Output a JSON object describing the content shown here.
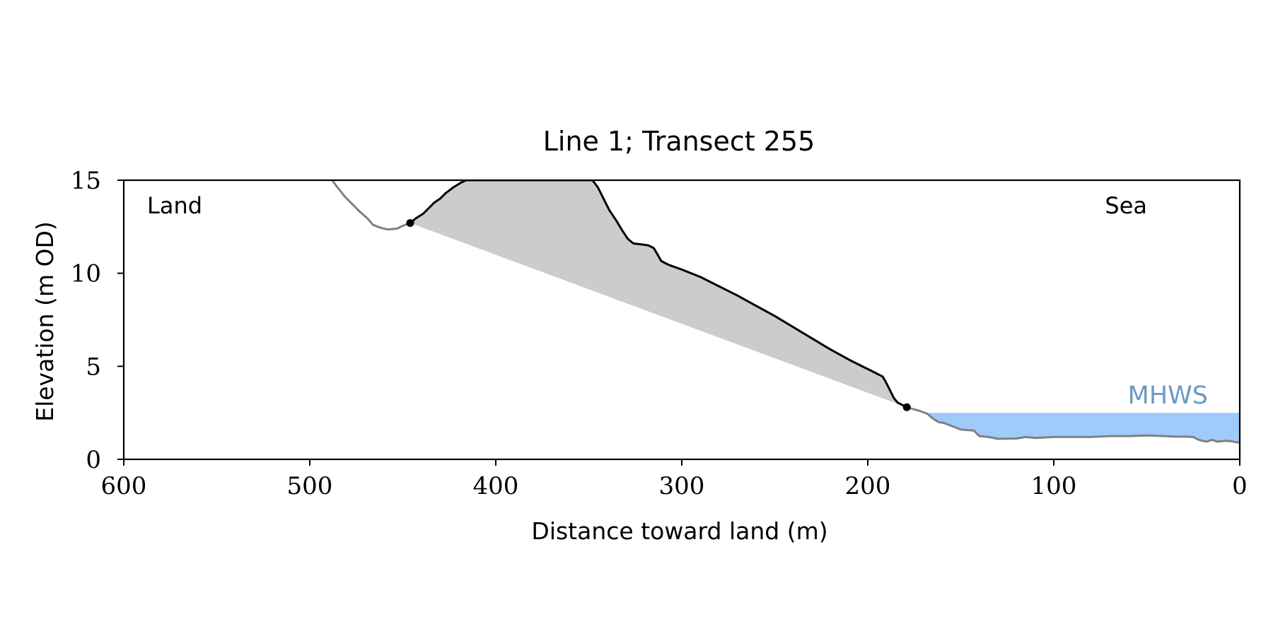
{
  "chart_data": {
    "type": "line",
    "title": "Line 1; Transect 255",
    "xlabel": "Distance toward land (m)",
    "ylabel": "Elevation (m OD)",
    "xlim": [
      600,
      0
    ],
    "ylim": [
      0,
      15
    ],
    "x_inverted": true,
    "grid": false,
    "xticks": [
      600,
      500,
      400,
      300,
      200,
      100,
      0
    ],
    "yticks": [
      0,
      5,
      10,
      15
    ],
    "annotations": {
      "land": "Land",
      "sea": "Sea",
      "mhws": "MHWS"
    },
    "mhws_level": 2.5,
    "series": [
      {
        "role": "profile-outer",
        "color": "#808080",
        "points": [
          [
            488,
            15.0
          ],
          [
            485,
            14.6
          ],
          [
            481,
            14.1
          ],
          [
            477,
            13.7
          ],
          [
            473,
            13.3
          ],
          [
            469,
            12.95
          ],
          [
            466,
            12.6
          ],
          [
            462,
            12.45
          ],
          [
            458,
            12.35
          ],
          [
            453,
            12.4
          ],
          [
            450,
            12.55
          ],
          [
            446,
            12.7
          ]
        ]
      },
      {
        "role": "profile-cliff",
        "color": "#000000",
        "points": [
          [
            446,
            12.7
          ],
          [
            443,
            12.95
          ],
          [
            439,
            13.2
          ],
          [
            436,
            13.5
          ],
          [
            433,
            13.8
          ],
          [
            430,
            14.0
          ],
          [
            427,
            14.3
          ],
          [
            423,
            14.6
          ],
          [
            419,
            14.85
          ],
          [
            416,
            15.0
          ],
          [
            348,
            15.0
          ],
          [
            345,
            14.6
          ],
          [
            342,
            14.0
          ],
          [
            339,
            13.4
          ],
          [
            335,
            12.8
          ],
          [
            332,
            12.3
          ],
          [
            329,
            11.85
          ],
          [
            326,
            11.6
          ],
          [
            322,
            11.55
          ],
          [
            318,
            11.5
          ],
          [
            315,
            11.35
          ],
          [
            313,
            11.0
          ],
          [
            311,
            10.65
          ],
          [
            307,
            10.45
          ],
          [
            300,
            10.2
          ],
          [
            290,
            9.8
          ],
          [
            280,
            9.3
          ],
          [
            270,
            8.8
          ],
          [
            260,
            8.25
          ],
          [
            250,
            7.7
          ],
          [
            240,
            7.1
          ],
          [
            230,
            6.5
          ],
          [
            220,
            5.9
          ],
          [
            210,
            5.35
          ],
          [
            202,
            4.95
          ],
          [
            198,
            4.75
          ],
          [
            195,
            4.6
          ],
          [
            192,
            4.45
          ],
          [
            190,
            4.1
          ],
          [
            188,
            3.7
          ],
          [
            186,
            3.3
          ],
          [
            184,
            3.05
          ],
          [
            181,
            2.9
          ],
          [
            179,
            2.8
          ]
        ]
      },
      {
        "role": "profile-shore",
        "color": "#808080",
        "points": [
          [
            179,
            2.8
          ],
          [
            172,
            2.6
          ],
          [
            168,
            2.45
          ],
          [
            165,
            2.2
          ],
          [
            162,
            2.0
          ],
          [
            159,
            1.95
          ],
          [
            155,
            1.8
          ],
          [
            150,
            1.6
          ],
          [
            143,
            1.55
          ],
          [
            140,
            1.25
          ],
          [
            135,
            1.2
          ],
          [
            130,
            1.1
          ],
          [
            120,
            1.12
          ],
          [
            115,
            1.2
          ],
          [
            110,
            1.15
          ],
          [
            100,
            1.2
          ],
          [
            90,
            1.2
          ],
          [
            80,
            1.2
          ],
          [
            70,
            1.25
          ],
          [
            60,
            1.25
          ],
          [
            50,
            1.28
          ],
          [
            40,
            1.25
          ],
          [
            35,
            1.22
          ],
          [
            30,
            1.22
          ],
          [
            25,
            1.2
          ],
          [
            22,
            1.05
          ],
          [
            18,
            0.95
          ],
          [
            15,
            1.05
          ],
          [
            12,
            0.95
          ],
          [
            8,
            1.0
          ],
          [
            5,
            0.98
          ],
          [
            2,
            0.92
          ],
          [
            0,
            0.9
          ]
        ]
      }
    ],
    "markers": [
      [
        446,
        12.7
      ],
      [
        179,
        2.8
      ]
    ],
    "shaded_region": {
      "color": "#cccccc",
      "baseline_from": [
        446,
        12.7
      ],
      "baseline_to": [
        179,
        2.8
      ]
    },
    "mhws_fill_color": "#9fcbfb",
    "mhws_label_color": "#6b9ac4"
  }
}
